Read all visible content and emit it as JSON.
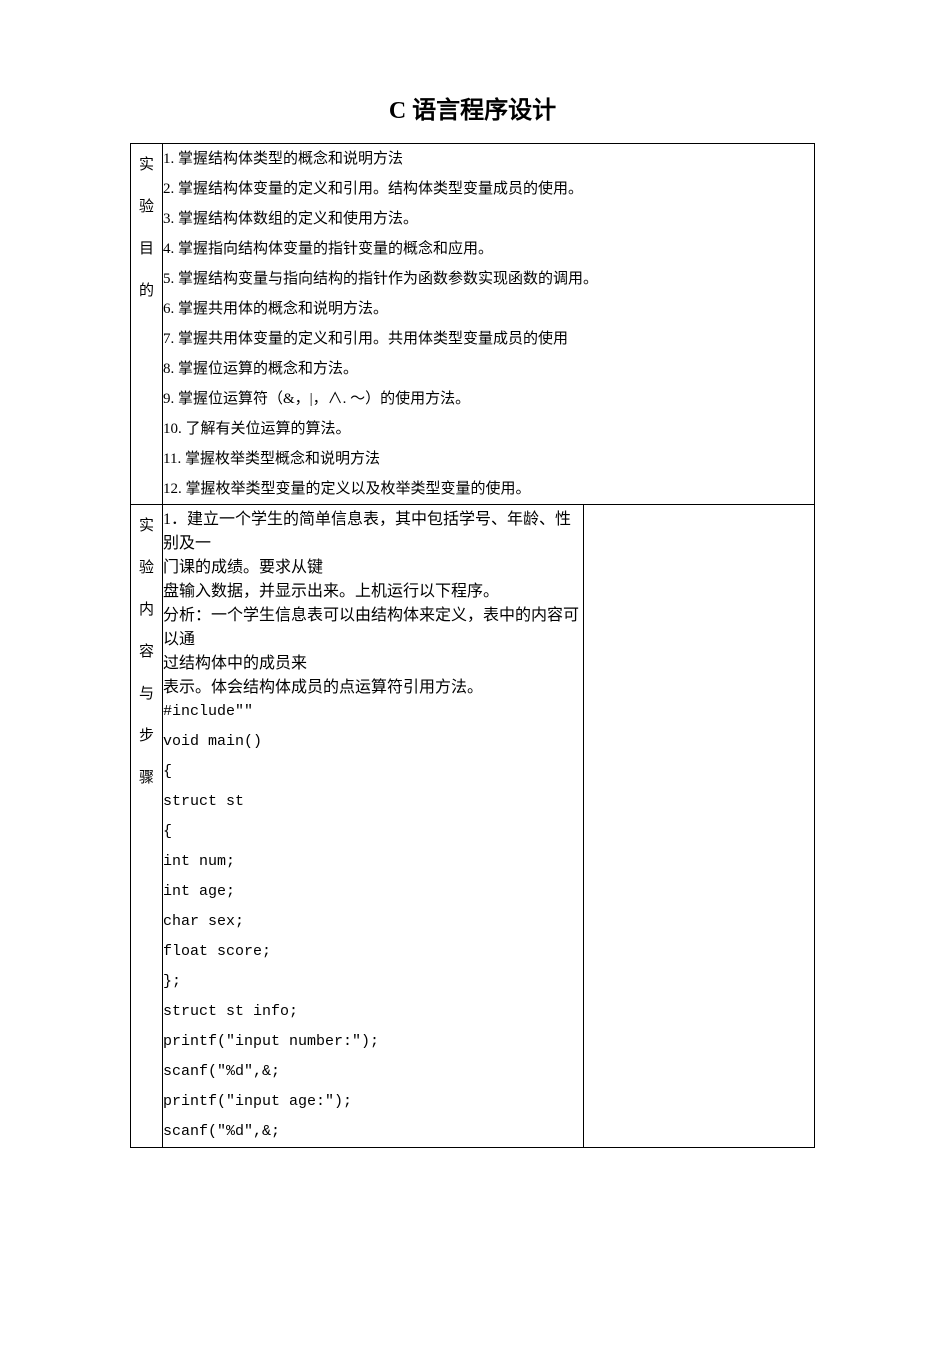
{
  "document": {
    "title": "C 语言程序设计",
    "title_fontsize": 24,
    "body_fontsize": 15,
    "line_height": 2.0,
    "border_color": "#000000",
    "text_color": "#000000",
    "background_color": "#ffffff",
    "font_family": "SimSun",
    "code_font_family": "Courier New"
  },
  "section1": {
    "label_chars": [
      "实",
      "验",
      "目",
      "的"
    ],
    "lines": [
      "1. 掌握结构体类型的概念和说明方法",
      "2. 掌握结构体变量的定义和引用。结构体类型变量成员的使用。",
      "3. 掌握结构体数组的定义和使用方法。",
      "4. 掌握指向结构体变量的指针变量的概念和应用。",
      "5. 掌握结构变量与指向结构的指针作为函数参数实现函数的调用。",
      "6. 掌握共用体的概念和说明方法。",
      "7. 掌握共用体变量的定义和引用。共用体类型变量成员的使用",
      "8. 掌握位运算的概念和方法。",
      "9. 掌握位运算符（&，|，∧. ～）的使用方法。",
      "10. 了解有关位运算的算法。",
      "11. 掌握枚举类型概念和说明方法",
      "12. 掌握枚举类型变量的定义以及枚举类型变量的使用。"
    ]
  },
  "section2": {
    "label_chars": [
      "实",
      "验",
      "内",
      "容",
      "与",
      "步",
      "骤"
    ],
    "lines": [
      "1．建立一个学生的简单信息表，其中包括学号、年龄、性别及一",
      "门课的成绩。要求从键",
      "盘输入数据，并显示出来。上机运行以下程序。",
      "分析：一个学生信息表可以由结构体来定义，表中的内容可以通",
      "过结构体中的成员来",
      "表示。体会结构体成员的点运算符引用方法。",
      " #include\"\"",
      "void  main()",
      "{",
      "struct  st",
      "{",
      " int  num;",
      "int  age;",
      "char  sex;",
      "float  score;",
      "};",
      "struct  st  info;",
      "printf(\"input  number:\");",
      "scanf(\"%d\",&;",
      "printf(\"input  age:\");",
      "scanf(\"%d\",&;"
    ]
  }
}
